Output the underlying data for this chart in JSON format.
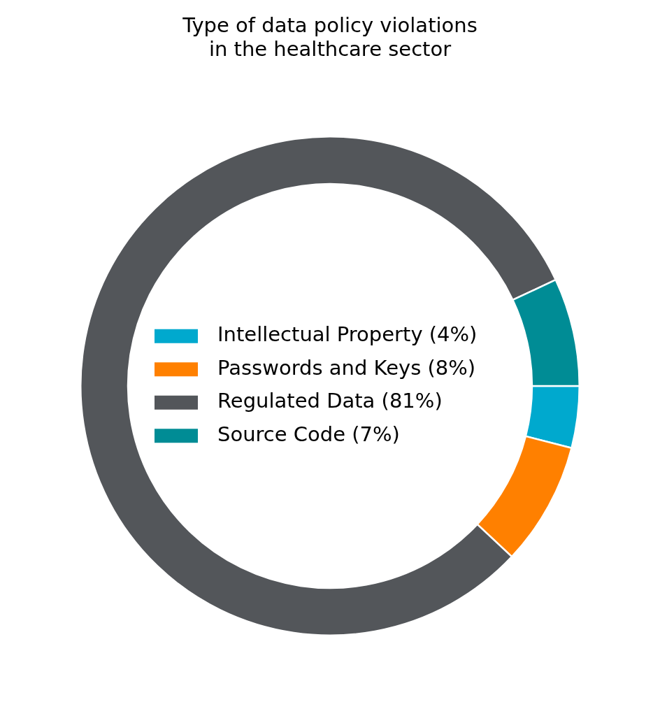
{
  "chart_data": {
    "type": "donut",
    "title": "Type of data policy violations\nin the healthcare sector",
    "categories": [
      "Intellectual Property (4%)",
      "Passwords and Keys (8%)",
      "Regulated Data (81%)",
      "Source Code (7%)"
    ],
    "values": [
      4,
      8,
      81,
      7
    ],
    "colors": [
      "#00a9ce",
      "#ff8000",
      "#53565a",
      "#008c95"
    ],
    "legend": "center"
  }
}
